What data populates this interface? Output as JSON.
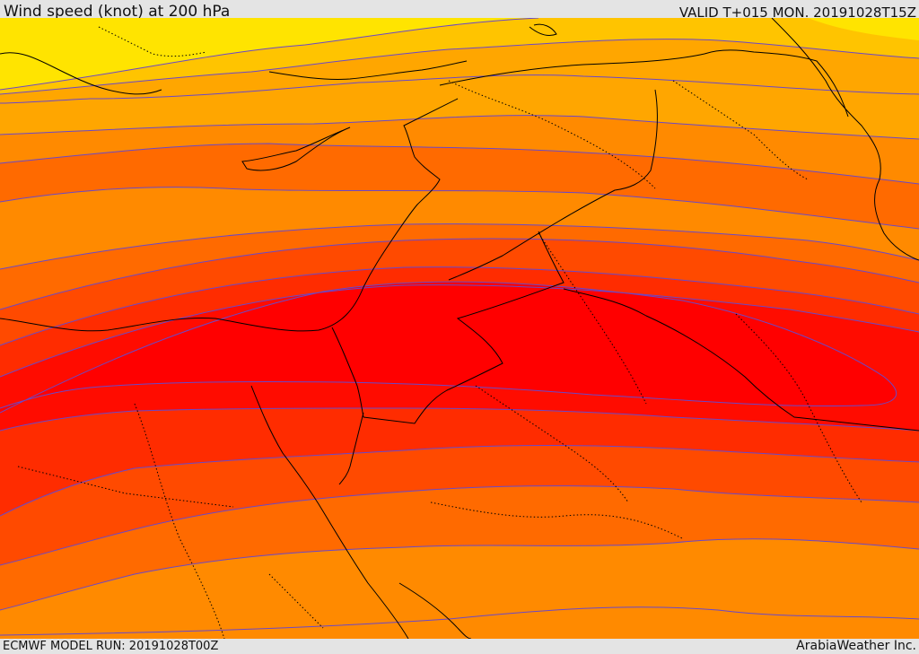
{
  "header": {
    "title": "Wind speed (knot) at 200 hPa",
    "valid": "VALID T+015 MON. 20191028T15Z"
  },
  "footer": {
    "model_run": "ECMWF MODEL RUN: 20191028T00Z",
    "credit": "ArabiaWeather Inc."
  },
  "map": {
    "band_colors": [
      "#ffe400",
      "#ffc400",
      "#ffa600",
      "#ff8a00",
      "#ff6a00",
      "#ff4a00",
      "#ff2c00",
      "#ff0c00",
      "#ff0000"
    ],
    "contour_color": "#6a48c8",
    "border_color": "#000000"
  }
}
